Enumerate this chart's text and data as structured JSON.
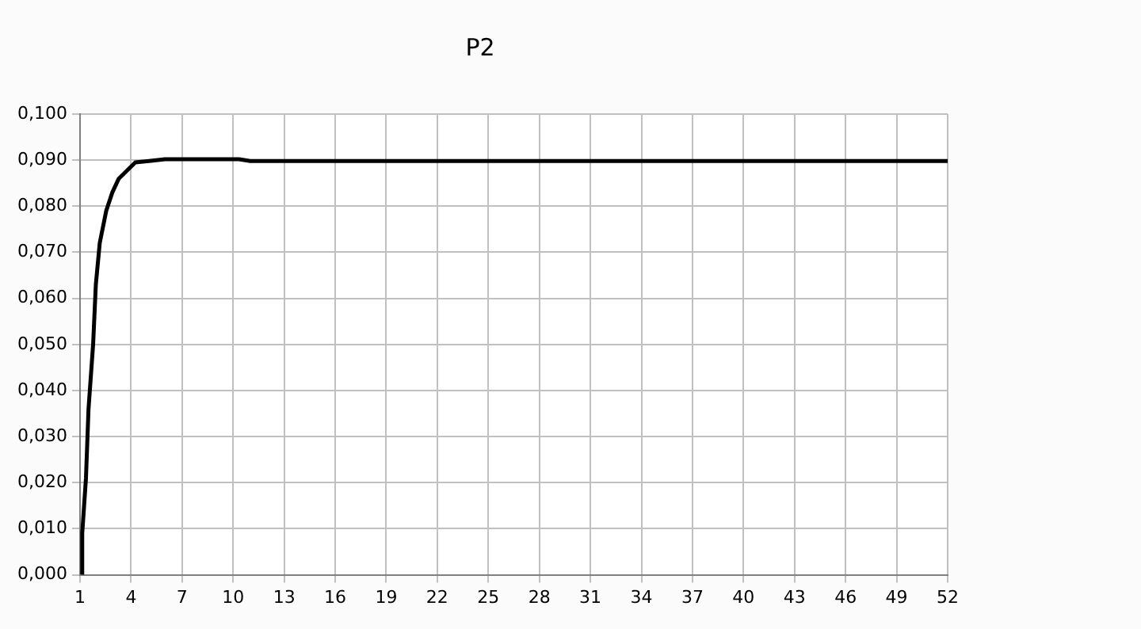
{
  "chart_data": {
    "type": "line",
    "title": "P2",
    "x": [
      1.1,
      1.13,
      1.35,
      1.5,
      1.77,
      1.93,
      2.16,
      2.54,
      2.9,
      3.28,
      4.25,
      5.05,
      6,
      10.35,
      11,
      52
    ],
    "series": [
      {
        "color": "#000000",
        "values": [
          0,
          0.009,
          0.021,
          0.036,
          0.05,
          0.063,
          0.072,
          0.079,
          0.083,
          0.086,
          0.0895,
          0.0898,
          0.0902,
          0.0902,
          0.0898,
          0.0898
        ]
      }
    ],
    "xlim": [
      1,
      52
    ],
    "xticks": [
      1,
      4,
      7,
      10,
      13,
      16,
      19,
      22,
      25,
      28,
      31,
      34,
      37,
      40,
      43,
      46,
      49,
      52
    ],
    "ylim": [
      0,
      0.1
    ],
    "yticks": [
      {
        "value": 0,
        "label": "0,000"
      },
      {
        "value": 0.01,
        "label": "0,010"
      },
      {
        "value": 0.02,
        "label": "0,020"
      },
      {
        "value": 0.03,
        "label": "0,030"
      },
      {
        "value": 0.04,
        "label": "0,040"
      },
      {
        "value": 0.05,
        "label": "0,050"
      },
      {
        "value": 0.06,
        "label": "0,060"
      },
      {
        "value": 0.07,
        "label": "0,070"
      },
      {
        "value": 0.08,
        "label": "0,080"
      },
      {
        "value": 0.09,
        "label": "0,090"
      },
      {
        "value": 0.1,
        "label": "0,100"
      }
    ],
    "grid": true,
    "legend": false,
    "marker": "none",
    "line_style": "solid"
  }
}
